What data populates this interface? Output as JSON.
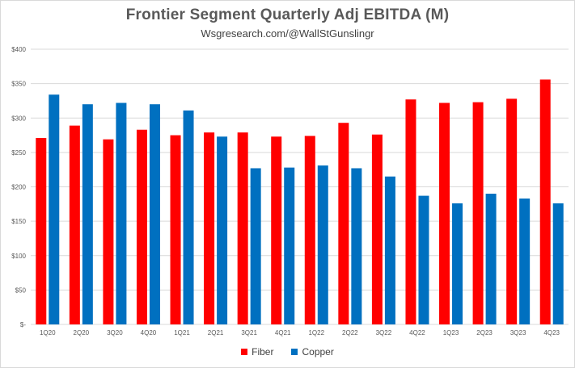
{
  "chart_data": {
    "type": "bar",
    "title": "Frontier Segment Quarterly Adj EBITDA (M)",
    "subtitle": "Wsgresearch.com/@WallStGunslingr",
    "xlabel": "",
    "ylabel": "",
    "categories": [
      "1Q20",
      "2Q20",
      "3Q20",
      "4Q20",
      "1Q21",
      "2Q21",
      "3Q21",
      "4Q21",
      "1Q22",
      "2Q22",
      "3Q22",
      "4Q22",
      "1Q23",
      "2Q23",
      "3Q23",
      "4Q23"
    ],
    "series": [
      {
        "name": "Fiber",
        "color": "#ff0000",
        "values": [
          271,
          289,
          269,
          283,
          275,
          279,
          279,
          273,
          274,
          293,
          276,
          327,
          322,
          323,
          328,
          356
        ]
      },
      {
        "name": "Copper",
        "color": "#0070c0",
        "values": [
          334,
          320,
          322,
          320,
          311,
          273,
          227,
          228,
          231,
          227,
          215,
          187,
          176,
          190,
          183,
          176
        ]
      }
    ],
    "ylim": [
      0,
      400
    ],
    "yticks": [
      0,
      50,
      100,
      150,
      200,
      250,
      300,
      350,
      400
    ],
    "ytick_labels": [
      "$-",
      "$50",
      "$100",
      "$150",
      "$200",
      "$250",
      "$300",
      "$350",
      "$400"
    ],
    "grid": true,
    "legend_position": "bottom"
  }
}
